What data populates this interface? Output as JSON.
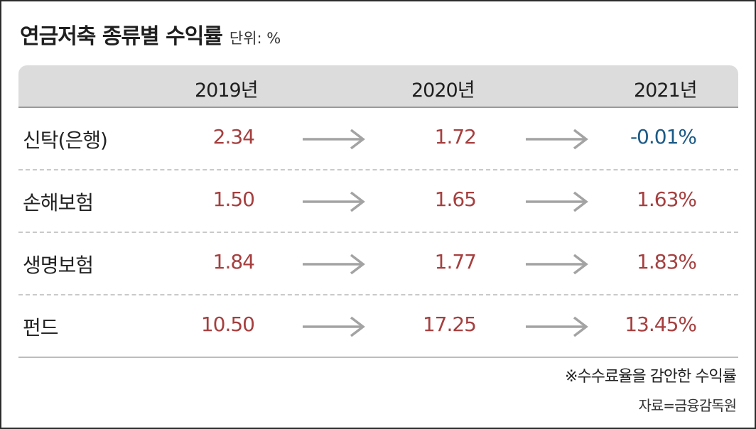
{
  "title": "연금저축 종류별 수익률",
  "unit": "단위: %",
  "note": "※수수료율을 감안한 수익률",
  "source": "자료=금융감독원",
  "colors": {
    "positive": "#a63f3f",
    "negative": "#1b5a86",
    "header_bg": "#dcdcdc",
    "arrow": "#a3a3a3"
  },
  "chart_data": {
    "type": "table",
    "columns": [
      "2019년",
      "2020년",
      "2021년"
    ],
    "rows": [
      {
        "category": "신탁(은행)",
        "values": [
          "2.34",
          "1.72",
          "-0.01%"
        ],
        "numeric": [
          2.34,
          1.72,
          -0.01
        ]
      },
      {
        "category": "손해보험",
        "values": [
          "1.50",
          "1.65",
          "1.63%"
        ],
        "numeric": [
          1.5,
          1.65,
          1.63
        ]
      },
      {
        "category": "생명보험",
        "values": [
          "1.84",
          "1.77",
          "1.83%"
        ],
        "numeric": [
          1.84,
          1.77,
          1.83
        ]
      },
      {
        "category": "펀드",
        "values": [
          "10.50",
          "17.25",
          "13.45%"
        ],
        "numeric": [
          10.5,
          17.25,
          13.45
        ]
      }
    ]
  }
}
